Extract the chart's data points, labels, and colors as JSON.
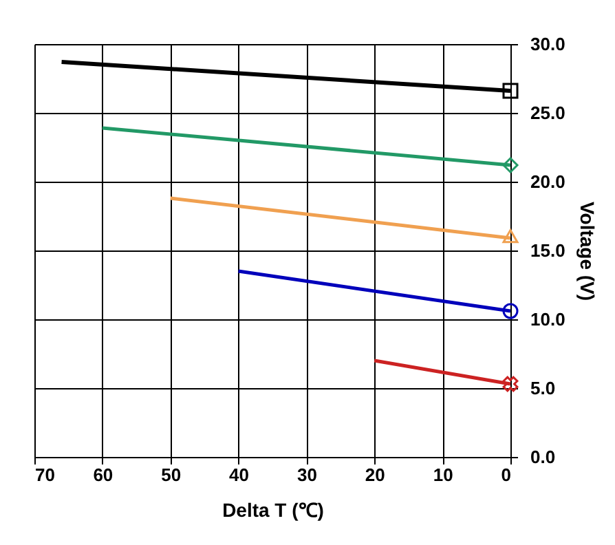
{
  "chart_data": {
    "type": "line",
    "xlabel": "Delta T (℃)",
    "ylabel": "Voltage (V)",
    "xlim": [
      70,
      0
    ],
    "xticks": [
      70,
      60,
      50,
      40,
      30,
      20,
      10,
      0
    ],
    "ylim": [
      0,
      30
    ],
    "yticks": [
      {
        "value": 0,
        "label": "0.0"
      },
      {
        "value": 5,
        "label": "5.0"
      },
      {
        "value": 10,
        "label": "10.0"
      },
      {
        "value": 15,
        "label": "15.0"
      },
      {
        "value": 20,
        "label": "20.0"
      },
      {
        "value": 25,
        "label": "25.0"
      },
      {
        "value": 30,
        "label": "30.0"
      }
    ],
    "grid": true,
    "line_style": "solid",
    "series": [
      {
        "color": "#000000",
        "x": [
          66,
          0
        ],
        "values": [
          28.7,
          26.6
        ],
        "marker": "square"
      },
      {
        "color": "#229966",
        "x": [
          60,
          0
        ],
        "values": [
          23.9,
          21.2
        ],
        "marker": "diamond"
      },
      {
        "color": "#f0a050",
        "x": [
          50,
          0
        ],
        "values": [
          18.8,
          15.9
        ],
        "marker": "triangle"
      },
      {
        "color": "#0000bb",
        "x": [
          40,
          0
        ],
        "values": [
          13.5,
          10.6
        ],
        "marker": "circle"
      },
      {
        "color": "#cc2222",
        "x": [
          20,
          0
        ],
        "values": [
          7.0,
          5.3
        ],
        "marker": "cross"
      }
    ]
  }
}
